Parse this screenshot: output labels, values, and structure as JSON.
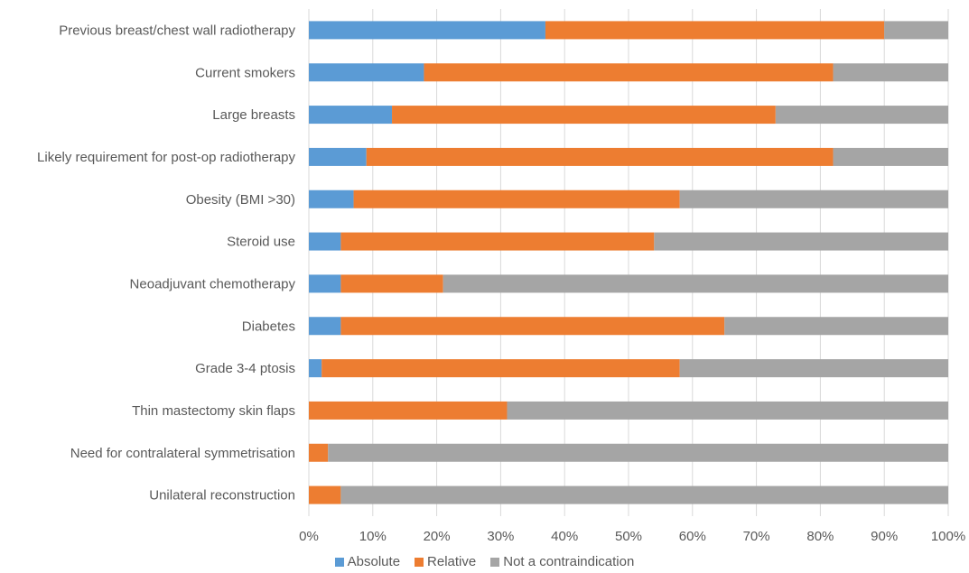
{
  "chart_data": {
    "type": "bar",
    "orientation": "horizontal",
    "stacked": true,
    "percent_stacked": true,
    "categories": [
      "Previous breast/chest wall radiotherapy",
      "Current smokers",
      "Large breasts",
      "Likely requirement for post-op radiotherapy",
      "Obesity (BMI >30)",
      "Steroid use",
      "Neoadjuvant chemotherapy",
      "Diabetes",
      "Grade 3-4 ptosis",
      "Thin mastectomy skin flaps",
      "Need for contralateral symmetrisation",
      "Unilateral reconstruction"
    ],
    "series": [
      {
        "name": "Absolute",
        "color": "#5B9BD5",
        "values": [
          37,
          18,
          13,
          9,
          7,
          5,
          5,
          5,
          2,
          0,
          0,
          0
        ]
      },
      {
        "name": "Relative",
        "color": "#ED7D31",
        "values": [
          53,
          64,
          60,
          73,
          51,
          49,
          16,
          60,
          56,
          31,
          3,
          5
        ]
      },
      {
        "name": "Not a contraindication",
        "color": "#A5A5A5",
        "values": [
          10,
          18,
          27,
          18,
          42,
          46,
          79,
          35,
          42,
          69,
          97,
          95
        ]
      }
    ],
    "xlim": [
      0,
      100
    ],
    "x_ticks": [
      "0%",
      "10%",
      "20%",
      "30%",
      "40%",
      "50%",
      "60%",
      "70%",
      "80%",
      "90%",
      "100%"
    ],
    "grid": true,
    "legend_position": "bottom",
    "title": "",
    "xlabel": "",
    "ylabel": ""
  }
}
